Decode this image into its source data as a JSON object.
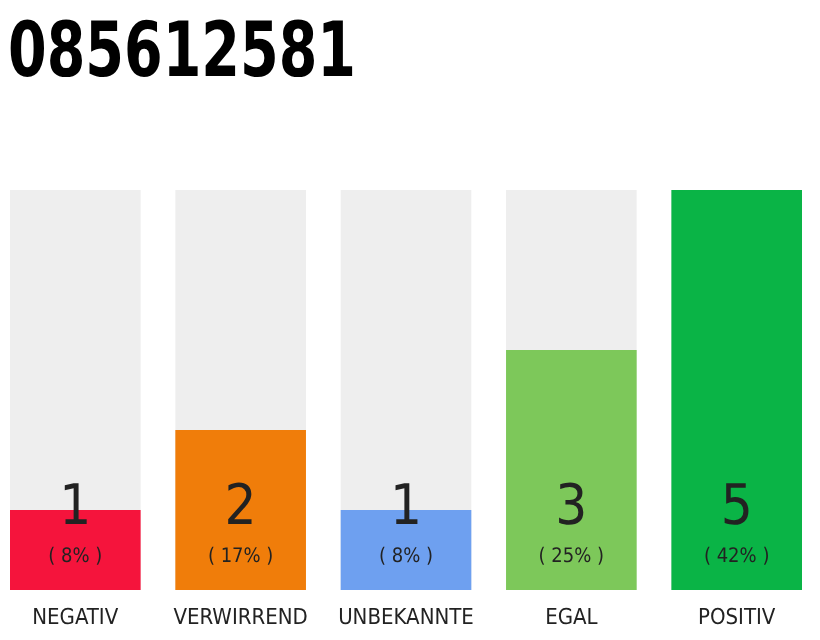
{
  "chart_data": {
    "type": "bar",
    "title": "085612581",
    "categories": [
      "NEGATIV",
      "VERWIRREND",
      "UNBEKANNTE",
      "EGAL",
      "POSITIV"
    ],
    "colors": [
      "#f5143c",
      "#f07d0a",
      "#6ea0f0",
      "#7dc85a",
      "#0ab446"
    ],
    "values": [
      1,
      2,
      1,
      3,
      5
    ],
    "data_labels": true,
    "annotations": [
      "( 8% )",
      "( 17% )",
      "( 8% )",
      "( 25% )",
      "( 42% )"
    ]
  }
}
